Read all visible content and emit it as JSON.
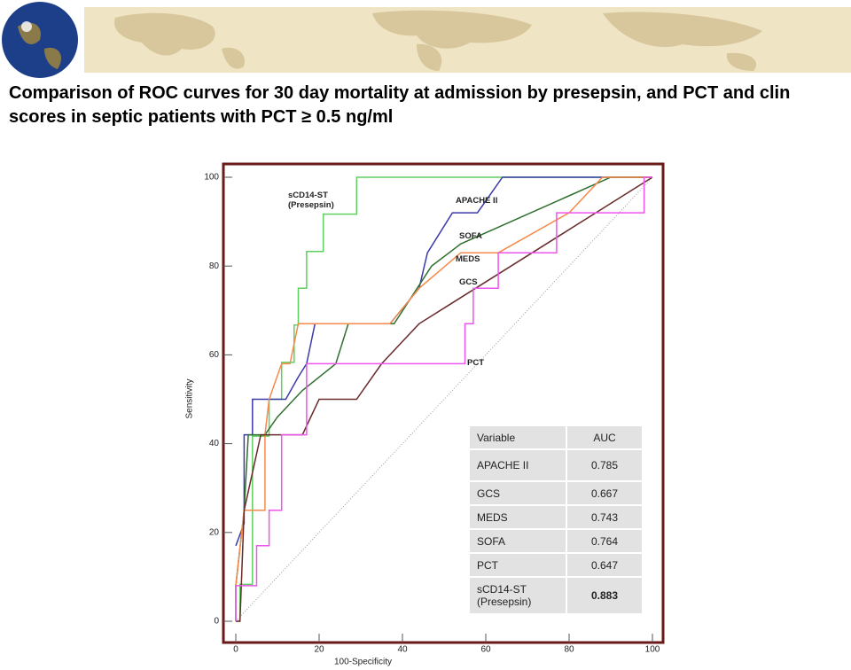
{
  "title": "Comparison of ROC curves for 30 day mortality at admission by presepsin, and PCT and clin scores in septic patients with PCT ≥ 0.5 ng/ml",
  "chart_data": {
    "type": "line",
    "x_label": "100-Specificity",
    "y_label": "Sensitivity",
    "xlim": [
      0,
      100
    ],
    "ylim": [
      0,
      100
    ],
    "xticks": [
      0,
      20,
      40,
      60,
      80,
      100
    ],
    "yticks": [
      0,
      20,
      40,
      60,
      80,
      100
    ],
    "diagonal": true,
    "series": [
      {
        "name": "sCD14-ST (Presepsin)",
        "color": "#5fcf5f",
        "x": [
          0,
          1,
          1,
          4,
          4,
          8,
          8,
          11,
          11,
          14,
          14,
          15,
          15,
          17,
          17,
          21,
          21,
          29,
          29,
          100
        ],
        "values": [
          0,
          0,
          8.3,
          8.3,
          41.7,
          41.7,
          50,
          50,
          58.3,
          58.3,
          66.7,
          66.7,
          75,
          75,
          83.3,
          83.3,
          91.7,
          91.7,
          100,
          100
        ]
      },
      {
        "name": "APACHE II",
        "color": "#3a3aa8",
        "x": [
          0,
          2,
          2,
          4,
          4,
          12,
          15,
          17,
          19,
          23,
          37,
          44,
          46,
          52,
          58,
          64,
          100
        ],
        "values": [
          17,
          22,
          42,
          42,
          50,
          50,
          55,
          58,
          67,
          67,
          67,
          75,
          83,
          92,
          92,
          100,
          100
        ]
      },
      {
        "name": "SOFA",
        "color": "#2f6f2f",
        "x": [
          0,
          0,
          2,
          3,
          7,
          10,
          16,
          24,
          27,
          38,
          47,
          54,
          90,
          100
        ],
        "values": [
          0,
          8,
          25,
          42,
          42,
          46,
          52,
          58,
          67,
          67,
          80,
          85,
          100,
          100
        ]
      },
      {
        "name": "MEDS",
        "color": "#f58a4a",
        "x": [
          0,
          2,
          7,
          7,
          8,
          11,
          13,
          15,
          37,
          44,
          54,
          63,
          80,
          88,
          100
        ],
        "values": [
          8,
          25,
          25,
          42,
          50,
          58,
          58,
          67,
          67,
          75,
          83,
          83,
          92,
          100,
          100
        ]
      },
      {
        "name": "GCS",
        "color": "#6a2a2a",
        "x": [
          0,
          1,
          2,
          6,
          16,
          20,
          29,
          35,
          44,
          100
        ],
        "values": [
          0,
          0,
          25,
          42,
          42,
          50,
          50,
          58,
          67,
          100
        ]
      },
      {
        "name": "PCT",
        "color": "#ee55ee",
        "x": [
          0,
          0,
          5,
          5,
          8,
          8,
          11,
          11,
          17,
          17,
          55,
          55,
          57,
          57,
          63,
          63,
          77,
          77,
          98,
          98,
          100
        ],
        "values": [
          0,
          8,
          8,
          17,
          17,
          25,
          25,
          42,
          42,
          58,
          58,
          67,
          67,
          75,
          75,
          83,
          83,
          92,
          92,
          100,
          100
        ]
      }
    ],
    "table": {
      "header": [
        "Variable",
        "AUC"
      ],
      "rows": [
        [
          "APACHE II",
          "0.785"
        ],
        [
          "GCS",
          "0.667"
        ],
        [
          "MEDS",
          "0.743"
        ],
        [
          "SOFA",
          "0.764"
        ],
        [
          "PCT",
          "0.647"
        ],
        [
          "sCD14-ST (Presepsin)",
          "0.883"
        ]
      ]
    }
  }
}
